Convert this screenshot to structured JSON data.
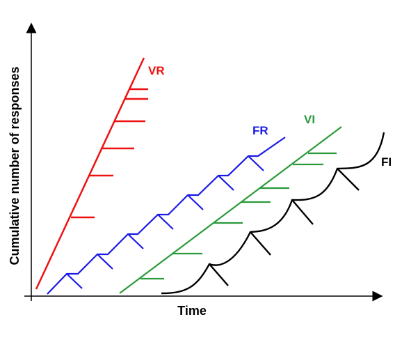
{
  "axes": {
    "x_label": "Time",
    "y_label": "Cumulative number of responses",
    "color": "#000000"
  },
  "curves": [
    {
      "id": "vr",
      "label": "VR",
      "color": "#ee1111"
    },
    {
      "id": "fr",
      "label": "FR",
      "color": "#1a1ae6"
    },
    {
      "id": "vi",
      "label": "VI",
      "color": "#2a9a3a"
    },
    {
      "id": "fi",
      "label": "FI",
      "color": "#000000"
    }
  ]
}
